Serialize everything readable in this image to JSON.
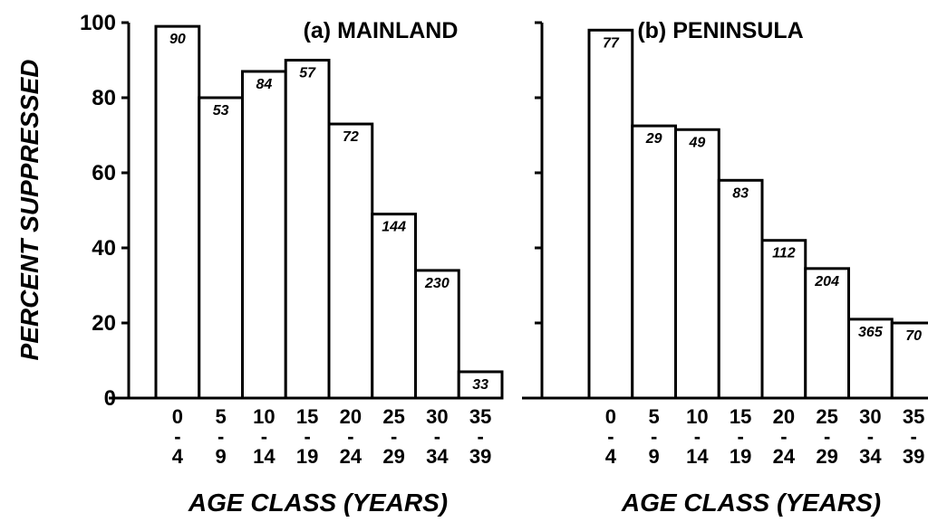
{
  "chart_data": [
    {
      "type": "bar",
      "title": "(a) MAINLAND",
      "ylabel": "PERCENT SUPPRESSED",
      "xlabel": "AGE CLASS (YEARS)",
      "categories": [
        "0-4",
        "5-9",
        "10-14",
        "15-19",
        "20-24",
        "25-29",
        "30-34",
        "35-39"
      ],
      "values": [
        99,
        80,
        87,
        90,
        73,
        49,
        34,
        7
      ],
      "annotations": [
        "90",
        "53",
        "84",
        "57",
        "72",
        "144",
        "230",
        "33"
      ],
      "color": "#ffffff",
      "ylim": [
        0,
        100
      ],
      "yticks": [
        0,
        20,
        40,
        60,
        80,
        100
      ],
      "ytick_labels": true
    },
    {
      "type": "bar",
      "title": "(b) PENINSULA",
      "xlabel": "AGE CLASS (YEARS)",
      "categories": [
        "0-4",
        "5-9",
        "10-14",
        "15-19",
        "20-24",
        "25-29",
        "30-34",
        "35-39"
      ],
      "values": [
        98,
        72.5,
        71.5,
        58,
        42,
        34.5,
        21,
        20
      ],
      "annotations": [
        "77",
        "29",
        "49",
        "83",
        "112",
        "204",
        "365",
        "70"
      ],
      "color": "#ffffff",
      "ylim": [
        0,
        100
      ],
      "yticks": [
        0,
        20,
        40,
        60,
        80,
        100
      ],
      "ytick_labels": false
    }
  ]
}
